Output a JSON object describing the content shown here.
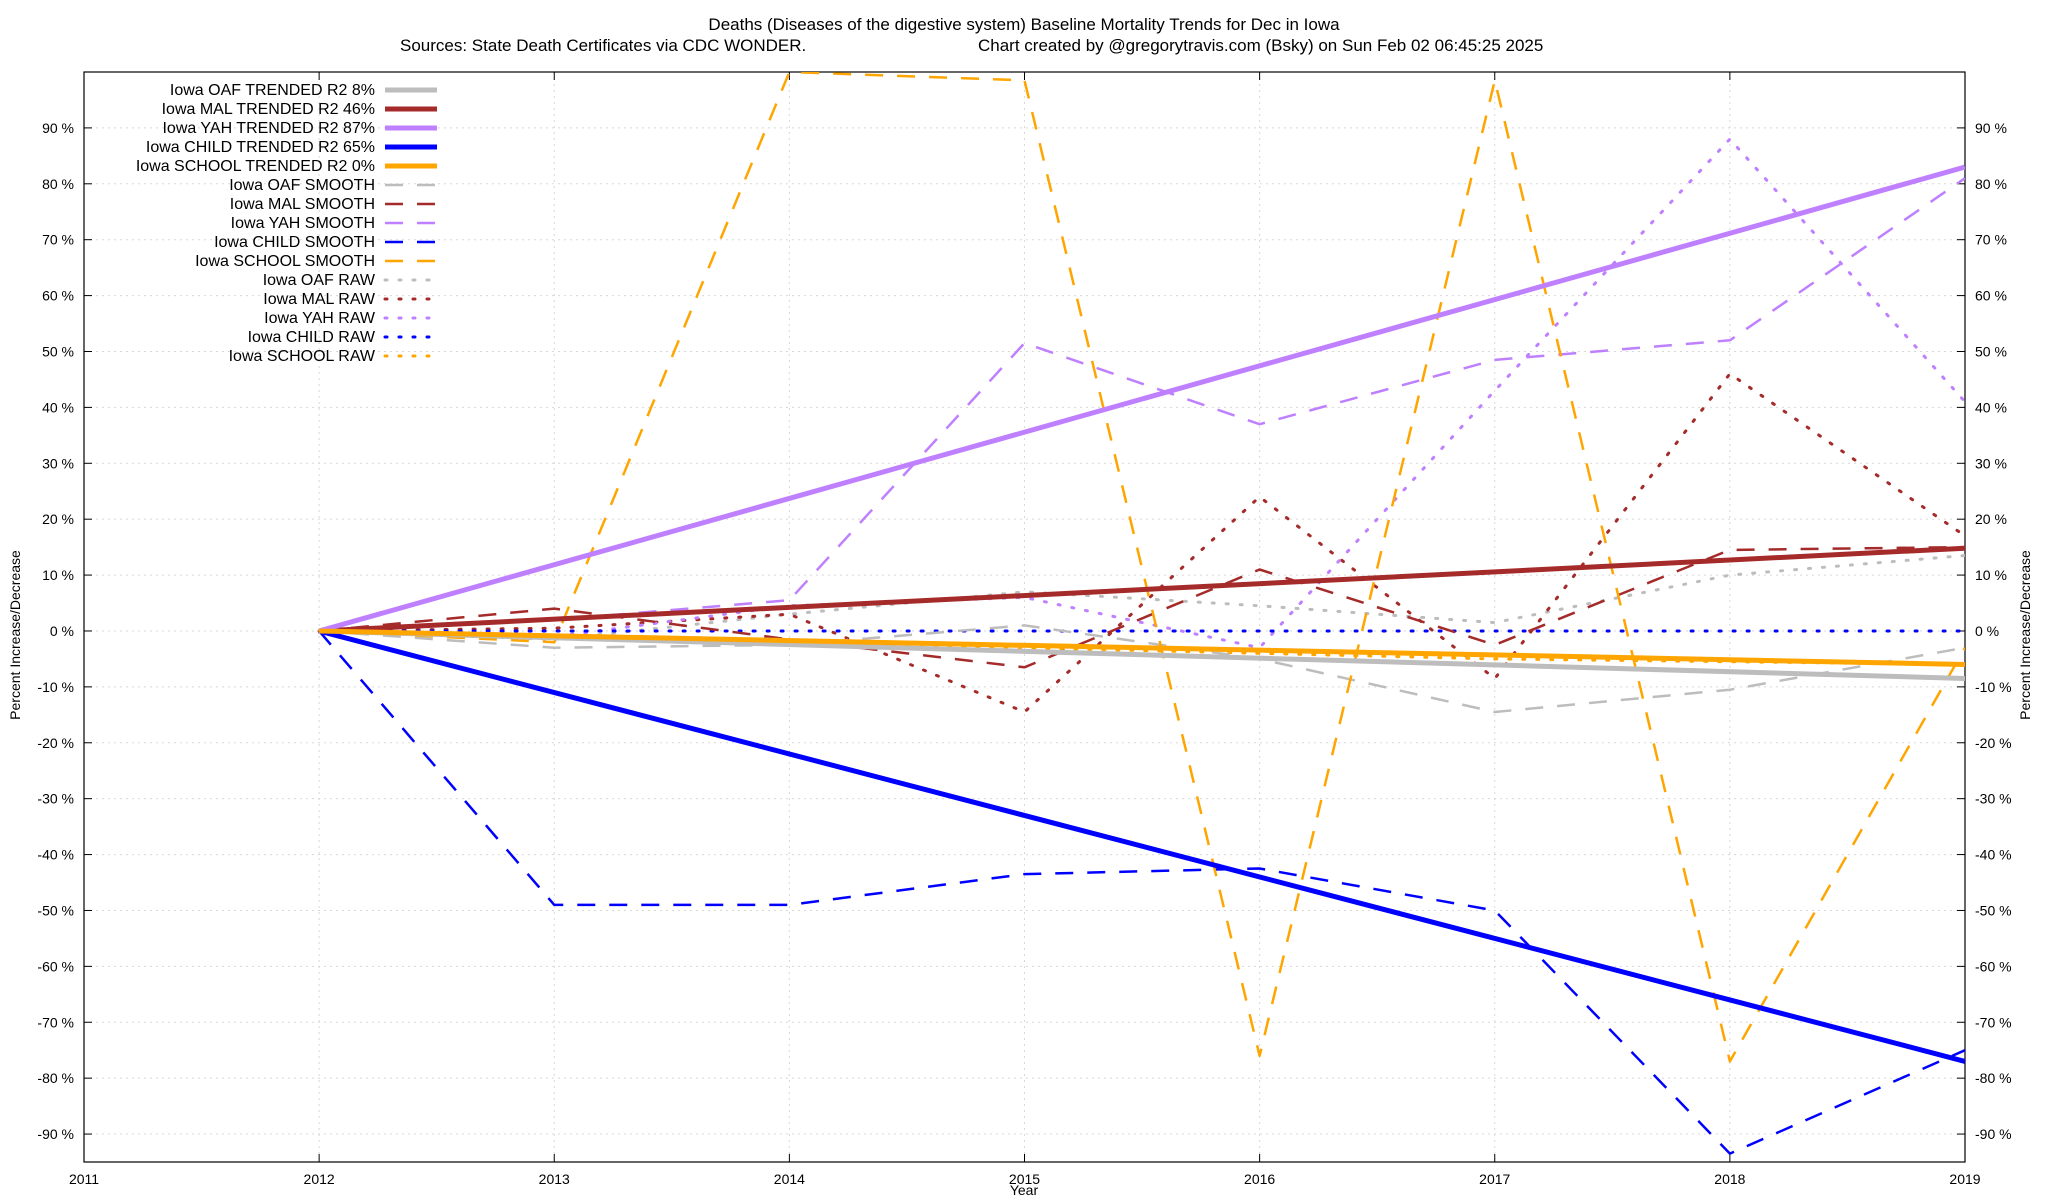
{
  "chart_data": {
    "type": "line",
    "title": "Deaths (Diseases of the digestive system)  Baseline Mortality Trends for Dec in Iowa",
    "subtitle_left": "Sources: State Death Certificates via CDC WONDER.",
    "subtitle_right": "Chart created by @gregorytravis.com (Bsky) on Sun Feb 02 06:45:25 2025",
    "xlabel": "Year",
    "ylabel_left": "Percent Increase/Decrease",
    "ylabel_right": "Percent Increase/Decrease",
    "xlim": [
      2011,
      2019
    ],
    "ylim": [
      -95,
      100
    ],
    "x_ticks": [
      "2011",
      "2012",
      "2013",
      "2014",
      "2015",
      "2016",
      "2017",
      "2018",
      "2019"
    ],
    "y_ticks": [
      -90,
      -80,
      -70,
      -60,
      -50,
      -40,
      -30,
      -20,
      -10,
      0,
      10,
      20,
      30,
      40,
      50,
      60,
      70,
      80,
      90
    ],
    "y_tick_labels": [
      "-90 %",
      "-80 %",
      "-70 %",
      "-60 %",
      "-50 %",
      "-40 %",
      "-30 %",
      "-20 %",
      "-10 %",
      "0 %",
      "10 %",
      "20 %",
      "30 %",
      "40 %",
      "50 %",
      "60 %",
      "70 %",
      "80 %",
      "90 %"
    ],
    "grid": true,
    "legend_position": "top-left",
    "colors": {
      "OAF": "#bdbdbd",
      "MAL": "#a52a2a",
      "YAH": "#bf80ff",
      "CHILD": "#0000ff",
      "SCHOOL": "#ffa500"
    },
    "series": [
      {
        "name": "Iowa OAF TRENDED R2   8%",
        "group": "OAF",
        "style": "trend",
        "points": [
          [
            2012,
            0
          ],
          [
            2019,
            -8.5
          ]
        ]
      },
      {
        "name": "Iowa MAL TRENDED R2  46%",
        "group": "MAL",
        "style": "trend",
        "points": [
          [
            2012,
            0
          ],
          [
            2019,
            14.8
          ]
        ]
      },
      {
        "name": "Iowa YAH TRENDED R2  87%",
        "group": "YAH",
        "style": "trend",
        "points": [
          [
            2012,
            0
          ],
          [
            2019,
            83
          ]
        ]
      },
      {
        "name": "Iowa CHILD TRENDED R2  65%",
        "group": "CHILD",
        "style": "trend",
        "points": [
          [
            2012,
            0
          ],
          [
            2019,
            -77
          ]
        ]
      },
      {
        "name": "Iowa SCHOOL TRENDED R2   0%",
        "group": "SCHOOL",
        "style": "trend",
        "points": [
          [
            2012,
            0
          ],
          [
            2019,
            -6
          ]
        ]
      },
      {
        "name": "Iowa OAF SMOOTH",
        "group": "OAF",
        "style": "smooth",
        "points": [
          [
            2012,
            0
          ],
          [
            2013,
            -3
          ],
          [
            2014,
            -2.5
          ],
          [
            2015,
            1
          ],
          [
            2016,
            -5
          ],
          [
            2017,
            -14.5
          ],
          [
            2018,
            -10.5
          ],
          [
            2019,
            -3
          ]
        ]
      },
      {
        "name": "Iowa MAL SMOOTH",
        "group": "MAL",
        "style": "smooth",
        "points": [
          [
            2012,
            0
          ],
          [
            2013,
            4
          ],
          [
            2014,
            -1.5
          ],
          [
            2015,
            -6.5
          ],
          [
            2016,
            11
          ],
          [
            2017,
            -2.5
          ],
          [
            2018,
            14.5
          ],
          [
            2019,
            15
          ]
        ]
      },
      {
        "name": "Iowa YAH SMOOTH",
        "group": "YAH",
        "style": "smooth",
        "points": [
          [
            2012,
            0
          ],
          [
            2013,
            2
          ],
          [
            2014,
            5.5
          ],
          [
            2015,
            51.5
          ],
          [
            2016,
            37
          ],
          [
            2017,
            48.5
          ],
          [
            2018,
            52
          ],
          [
            2019,
            81
          ]
        ]
      },
      {
        "name": "Iowa CHILD SMOOTH",
        "group": "CHILD",
        "style": "smooth",
        "points": [
          [
            2012,
            0
          ],
          [
            2013,
            -49
          ],
          [
            2014,
            -49
          ],
          [
            2015,
            -43.5
          ],
          [
            2016,
            -42.5
          ],
          [
            2017,
            -50
          ],
          [
            2018,
            -93.5
          ],
          [
            2019,
            -75
          ]
        ]
      },
      {
        "name": "Iowa SCHOOL SMOOTH",
        "group": "SCHOOL",
        "style": "smooth",
        "points": [
          [
            2012,
            0
          ],
          [
            2013,
            -2
          ],
          [
            2014,
            100
          ],
          [
            2015,
            98.5
          ],
          [
            2016,
            -76
          ],
          [
            2017,
            98.5
          ],
          [
            2018,
            -77
          ],
          [
            2019,
            -3
          ]
        ]
      },
      {
        "name": "Iowa OAF RAW",
        "group": "OAF",
        "style": "raw",
        "points": [
          [
            2012,
            0
          ],
          [
            2013,
            -1.5
          ],
          [
            2014,
            3
          ],
          [
            2015,
            7
          ],
          [
            2016,
            4.5
          ],
          [
            2017,
            1.5
          ],
          [
            2018,
            10
          ],
          [
            2019,
            13.5
          ]
        ]
      },
      {
        "name": "Iowa MAL RAW",
        "group": "MAL",
        "style": "raw",
        "points": [
          [
            2012,
            0
          ],
          [
            2013,
            0.5
          ],
          [
            2014,
            3
          ],
          [
            2015,
            -14.5
          ],
          [
            2016,
            24
          ],
          [
            2017,
            -8.5
          ],
          [
            2018,
            46
          ],
          [
            2019,
            17
          ]
        ]
      },
      {
        "name": "Iowa YAH RAW",
        "group": "YAH",
        "style": "raw",
        "points": [
          [
            2012,
            0
          ],
          [
            2013,
            -1
          ],
          [
            2014,
            4.5
          ],
          [
            2015,
            6
          ],
          [
            2016,
            -3
          ],
          [
            2017,
            43
          ],
          [
            2018,
            88
          ],
          [
            2019,
            41
          ]
        ]
      },
      {
        "name": "Iowa CHILD RAW",
        "group": "CHILD",
        "style": "raw",
        "points": [
          [
            2012,
            0
          ],
          [
            2013,
            0
          ],
          [
            2014,
            0
          ],
          [
            2015,
            0
          ],
          [
            2016,
            0
          ],
          [
            2017,
            0
          ],
          [
            2018,
            0
          ],
          [
            2019,
            0
          ]
        ]
      },
      {
        "name": "Iowa SCHOOL RAW",
        "group": "SCHOOL",
        "style": "raw",
        "points": [
          [
            2012,
            0
          ],
          [
            2013,
            -1
          ],
          [
            2014,
            -2.5
          ],
          [
            2015,
            -3
          ],
          [
            2016,
            -4
          ],
          [
            2017,
            -5
          ],
          [
            2018,
            -5.5
          ],
          [
            2019,
            -6
          ]
        ]
      }
    ]
  }
}
